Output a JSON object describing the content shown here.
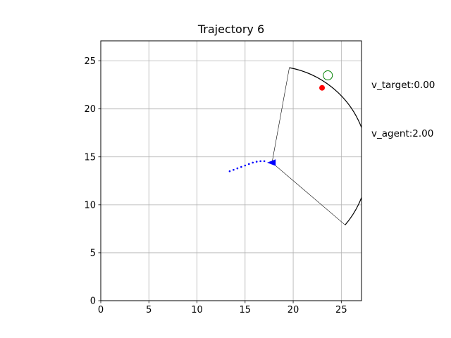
{
  "chart_data": {
    "type": "scatter",
    "title": "Trajectory 6",
    "xlabel": "",
    "ylabel": "",
    "xlim": [
      0,
      27.1
    ],
    "ylim": [
      0,
      27.1
    ],
    "grid": true,
    "xticks": [
      0,
      5,
      10,
      15,
      20,
      25
    ],
    "yticks": [
      0,
      5,
      10,
      15,
      20,
      25
    ],
    "xtick_labels": [
      "0",
      "5",
      "10",
      "15",
      "20",
      "25"
    ],
    "ytick_labels": [
      "0",
      "5",
      "10",
      "15",
      "20",
      "25"
    ],
    "annotations": {
      "v_target": "v_target:0.00",
      "v_agent": "v_agent:2.00"
    },
    "agent_path": {
      "color": "#0000ff",
      "marker": "dot",
      "x": [
        13.4,
        13.8,
        14.2,
        14.6,
        15.0,
        15.4,
        15.8,
        16.2,
        16.6,
        17.0
      ],
      "y": [
        13.5,
        13.65,
        13.8,
        13.95,
        14.1,
        14.25,
        14.4,
        14.5,
        14.55,
        14.55
      ]
    },
    "agent": {
      "x": 17.8,
      "y": 14.4,
      "heading_deg": 180,
      "color": "#0000ff",
      "marker": "triangle"
    },
    "target": {
      "x": 23.0,
      "y": 22.2,
      "color": "#ff0000",
      "marker": "dot"
    },
    "goal": {
      "x": 23.6,
      "y": 23.5,
      "color": "#008000",
      "marker": "open-circle"
    },
    "view_sector": {
      "apex": [
        17.8,
        14.4
      ],
      "edge1": [
        19.6,
        24.3
      ],
      "edge2": [
        25.4,
        7.9
      ],
      "color": "#000000"
    }
  }
}
